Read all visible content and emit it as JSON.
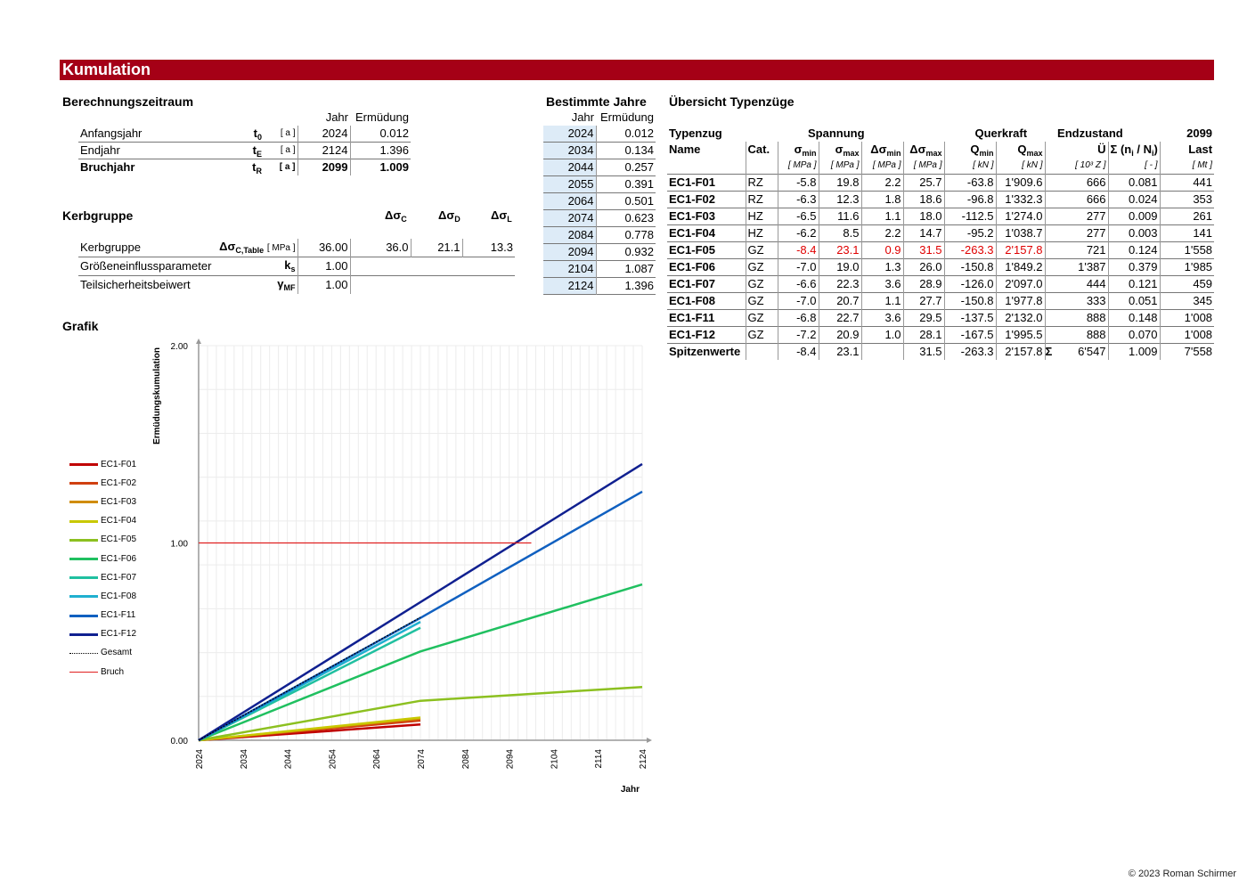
{
  "title": "Kumulation",
  "berechnung": {
    "heading": "Berechnungszeitraum",
    "col_jahr": "Jahr",
    "col_erm": "Ermüdung",
    "rows": [
      {
        "label": "Anfangsjahr",
        "sym": "t",
        "sub": "0",
        "unit": "[ a ]",
        "jahr": "2024",
        "erm": "0.012",
        "bold": false
      },
      {
        "label": "Endjahr",
        "sym": "t",
        "sub": "E",
        "unit": "[ a ]",
        "jahr": "2124",
        "erm": "1.396",
        "bold": false
      },
      {
        "label": "Bruchjahr",
        "sym": "t",
        "sub": "R",
        "unit": "[ a ]",
        "jahr": "2099",
        "erm": "1.009",
        "bold": true
      }
    ]
  },
  "kerb": {
    "heading": "Kerbgruppe",
    "h_c": "Δσ",
    "h_c_sub": "C",
    "h_d": "Δσ",
    "h_d_sub": "D",
    "h_l": "Δσ",
    "h_l_sub": "L",
    "rows": [
      {
        "label": "Kerbgruppe",
        "sym": "Δσ",
        "sub": "C,Table",
        "unit": "[ MPa ]",
        "val": "36.00",
        "c": "36.0",
        "d": "21.1",
        "l": "13.3"
      },
      {
        "label": "Größeneinflussparameter",
        "sym": "k",
        "sub": "s",
        "unit": "",
        "val": "1.00"
      },
      {
        "label": "Teilsicherheitsbeiwert",
        "sym": "γ",
        "sub": "MF",
        "unit": "",
        "val": "1.00"
      }
    ]
  },
  "bestimmte": {
    "heading": "Bestimmte Jahre",
    "col_jahr": "Jahr",
    "col_erm": "Ermüdung",
    "rows": [
      {
        "jahr": "2024",
        "erm": "0.012"
      },
      {
        "jahr": "2034",
        "erm": "0.134"
      },
      {
        "jahr": "2044",
        "erm": "0.257"
      },
      {
        "jahr": "2055",
        "erm": "0.391"
      },
      {
        "jahr": "2064",
        "erm": "0.501"
      },
      {
        "jahr": "2074",
        "erm": "0.623"
      },
      {
        "jahr": "2084",
        "erm": "0.778"
      },
      {
        "jahr": "2094",
        "erm": "0.932"
      },
      {
        "jahr": "2104",
        "erm": "1.087"
      },
      {
        "jahr": "2124",
        "erm": "1.396"
      }
    ]
  },
  "uebersicht": {
    "heading": "Übersicht Typenzüge",
    "g_typenzug": "Typenzug",
    "g_spannung": "Spannung",
    "g_querkraft": "Querkraft",
    "g_endzustand": "Endzustand",
    "g_year": "2099",
    "h_name": "Name",
    "h_cat": "Cat.",
    "h_smin": "σ",
    "h_smin_sub": "min",
    "h_smax": "σ",
    "h_smax_sub": "max",
    "h_dsmin": "Δσ",
    "h_dsmin_sub": "min",
    "h_dsmax": "Δσ",
    "h_dsmax_sub": "max",
    "h_qmin": "Q",
    "h_qmin_sub": "min",
    "h_qmax": "Q",
    "h_qmax_sub": "max",
    "h_ue": "Ü",
    "h_sum": "Σ (n",
    "h_sum_mid": " / N",
    "h_sum_end": ")",
    "h_last": "Last",
    "u_mpa": "[ MPa ]",
    "u_kn": "[ kN ]",
    "u_ue": "[ 10³ Z ]",
    "u_sum": "[ - ]",
    "u_last": "[ Mt ]",
    "rows": [
      {
        "name": "EC1-F01",
        "cat": "RZ",
        "smin": "-5.8",
        "smax": "19.8",
        "dsmin": "2.2",
        "dsmax": "25.7",
        "qmin": "-63.8",
        "qmax": "1'909.6",
        "ue": "666",
        "sum": "0.081",
        "last": "441",
        "red": false
      },
      {
        "name": "EC1-F02",
        "cat": "RZ",
        "smin": "-6.3",
        "smax": "12.3",
        "dsmin": "1.8",
        "dsmax": "18.6",
        "qmin": "-96.8",
        "qmax": "1'332.3",
        "ue": "666",
        "sum": "0.024",
        "last": "353",
        "red": false
      },
      {
        "name": "EC1-F03",
        "cat": "HZ",
        "smin": "-6.5",
        "smax": "11.6",
        "dsmin": "1.1",
        "dsmax": "18.0",
        "qmin": "-112.5",
        "qmax": "1'274.0",
        "ue": "277",
        "sum": "0.009",
        "last": "261",
        "red": false
      },
      {
        "name": "EC1-F04",
        "cat": "HZ",
        "smin": "-6.2",
        "smax": "8.5",
        "dsmin": "2.2",
        "dsmax": "14.7",
        "qmin": "-95.2",
        "qmax": "1'038.7",
        "ue": "277",
        "sum": "0.003",
        "last": "141",
        "red": false
      },
      {
        "name": "EC1-F05",
        "cat": "GZ",
        "smin": "-8.4",
        "smax": "23.1",
        "dsmin": "0.9",
        "dsmax": "31.5",
        "qmin": "-263.3",
        "qmax": "2'157.8",
        "ue": "721",
        "sum": "0.124",
        "last": "1'558",
        "red": true
      },
      {
        "name": "EC1-F06",
        "cat": "GZ",
        "smin": "-7.0",
        "smax": "19.0",
        "dsmin": "1.3",
        "dsmax": "26.0",
        "qmin": "-150.8",
        "qmax": "1'849.2",
        "ue": "1'387",
        "sum": "0.379",
        "last": "1'985",
        "red": false
      },
      {
        "name": "EC1-F07",
        "cat": "GZ",
        "smin": "-6.6",
        "smax": "22.3",
        "dsmin": "3.6",
        "dsmax": "28.9",
        "qmin": "-126.0",
        "qmax": "2'097.0",
        "ue": "444",
        "sum": "0.121",
        "last": "459",
        "red": false
      },
      {
        "name": "EC1-F08",
        "cat": "GZ",
        "smin": "-7.0",
        "smax": "20.7",
        "dsmin": "1.1",
        "dsmax": "27.7",
        "qmin": "-150.8",
        "qmax": "1'977.8",
        "ue": "333",
        "sum": "0.051",
        "last": "345",
        "red": false
      },
      {
        "name": "EC1-F11",
        "cat": "GZ",
        "smin": "-6.8",
        "smax": "22.7",
        "dsmin": "3.6",
        "dsmax": "29.5",
        "qmin": "-137.5",
        "qmax": "2'132.0",
        "ue": "888",
        "sum": "0.148",
        "last": "1'008",
        "red": false
      },
      {
        "name": "EC1-F12",
        "cat": "GZ",
        "smin": "-7.2",
        "smax": "20.9",
        "dsmin": "1.0",
        "dsmax": "28.1",
        "qmin": "-167.5",
        "qmax": "1'995.5",
        "ue": "888",
        "sum": "0.070",
        "last": "1'008",
        "red": false
      }
    ],
    "spitzen": {
      "name": "Spitzenwerte",
      "smin": "-8.4",
      "smax": "23.1",
      "dsmax": "31.5",
      "qmin": "-263.3",
      "qmax": "2'157.8",
      "sigma": "Σ",
      "ue": "6'547",
      "sum": "1.009",
      "last": "7'558"
    }
  },
  "grafik_heading": "Grafik",
  "chart_data": {
    "type": "line",
    "xlabel": "Jahr",
    "ylabel": "Ermüdungskumulation",
    "xlim": [
      2024,
      2124
    ],
    "ylim": [
      0,
      2
    ],
    "xticks": [
      "2024",
      "2034",
      "2044",
      "2054",
      "2064",
      "2074",
      "2084",
      "2094",
      "2104",
      "2114",
      "2124"
    ],
    "yticks": [
      "0.00",
      "1.00",
      "2.00"
    ],
    "grid": true,
    "legend": "left",
    "series": [
      {
        "name": "EC1-F01",
        "color": "#c00000",
        "x": [
          2024,
          2074
        ],
        "y": [
          0,
          0.08
        ]
      },
      {
        "name": "EC1-F02",
        "color": "#d04010",
        "x": [
          2024,
          2074
        ],
        "y": [
          0,
          0.1
        ]
      },
      {
        "name": "EC1-F03",
        "color": "#d08c00",
        "x": [
          2024,
          2074
        ],
        "y": [
          0,
          0.11
        ]
      },
      {
        "name": "EC1-F04",
        "color": "#c8c800",
        "x": [
          2024,
          2074
        ],
        "y": [
          0,
          0.115
        ]
      },
      {
        "name": "EC1-F05",
        "color": "#8cc020",
        "x": [
          2024,
          2074,
          2124
        ],
        "y": [
          0,
          0.2,
          0.27
        ]
      },
      {
        "name": "EC1-F06",
        "color": "#20c060",
        "x": [
          2024,
          2074,
          2124
        ],
        "y": [
          0,
          0.45,
          0.79
        ]
      },
      {
        "name": "EC1-F07",
        "color": "#20c0a0",
        "x": [
          2024,
          2074
        ],
        "y": [
          0,
          0.57
        ]
      },
      {
        "name": "EC1-F08",
        "color": "#20b0d0",
        "x": [
          2024,
          2074
        ],
        "y": [
          0,
          0.6
        ]
      },
      {
        "name": "EC1-F11",
        "color": "#1060c0",
        "x": [
          2024,
          2074,
          2124
        ],
        "y": [
          0,
          0.62,
          1.26
        ]
      },
      {
        "name": "EC1-F12",
        "color": "#102090",
        "x": [
          2024,
          2124
        ],
        "y": [
          0,
          1.4
        ]
      },
      {
        "name": "Gesamt",
        "color": "#000000",
        "dashed": true,
        "x": [
          2024,
          2074
        ],
        "y": [
          0,
          0.623
        ]
      },
      {
        "name": "Bruch",
        "color": "#e02020",
        "x": [
          2024,
          2099
        ],
        "y": [
          1,
          1
        ]
      }
    ]
  },
  "copyright": "© 2023 Roman Schirmer"
}
